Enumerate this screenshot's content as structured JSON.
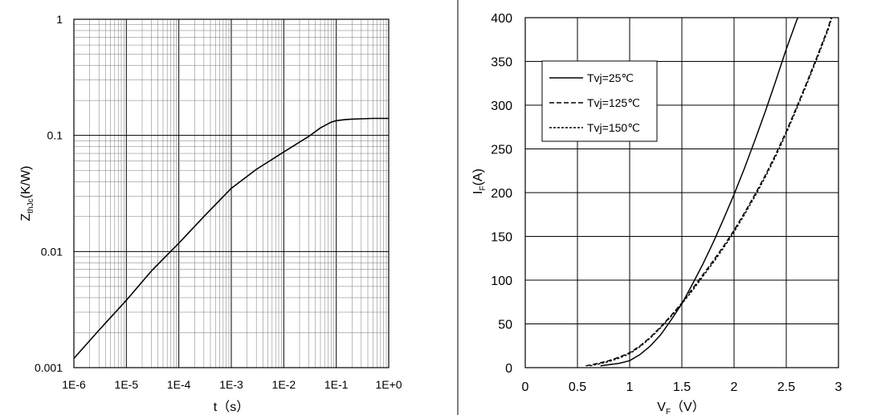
{
  "chart_data": [
    {
      "type": "line",
      "xscale": "log",
      "yscale": "log",
      "xlim": [
        1e-06,
        1
      ],
      "ylim": [
        0.001,
        1
      ],
      "x_tick_labels": [
        "1E-6",
        "1E-5",
        "1E-4",
        "1E-3",
        "1E-2",
        "1E-1",
        "1E+0"
      ],
      "y_tick_labels": [
        "0.001",
        "0.01",
        "0.1",
        "1"
      ],
      "xlabel": "t（s）",
      "ylabel": {
        "main": "Z",
        "sub": "thJc",
        "rest": "(K/W)"
      },
      "grid": true,
      "series": [
        {
          "x": [
            1e-06,
            3e-06,
            1e-05,
            3e-05,
            0.0001,
            0.0003,
            0.001,
            0.003,
            0.01,
            0.03,
            0.05,
            0.08,
            0.1,
            0.15,
            0.2,
            0.3,
            0.5,
            1
          ],
          "y": [
            0.0012,
            0.0021,
            0.0038,
            0.0068,
            0.0118,
            0.02,
            0.035,
            0.051,
            0.072,
            0.098,
            0.116,
            0.13,
            0.134,
            0.137,
            0.138,
            0.139,
            0.14,
            0.14
          ]
        }
      ]
    },
    {
      "type": "line",
      "xlim": [
        0,
        3
      ],
      "ylim": [
        0,
        400
      ],
      "x_ticks": [
        0,
        0.5,
        1,
        1.5,
        2,
        2.5,
        3
      ],
      "y_ticks": [
        0,
        50,
        100,
        150,
        200,
        250,
        300,
        350,
        400
      ],
      "x_tick_labels": [
        "0",
        "0.5",
        "1",
        "1.5",
        "2",
        "2.5",
        "3"
      ],
      "y_tick_labels": [
        "0",
        "50",
        "100",
        "150",
        "200",
        "250",
        "300",
        "350",
        "400"
      ],
      "xlabel": {
        "main": "V",
        "sub": "F",
        "rest": "（V）"
      },
      "ylabel": {
        "main": "I",
        "sub": "F",
        "rest": "(A)"
      },
      "grid": true,
      "legend": "top-left",
      "series": [
        {
          "name": "Tvj=25℃",
          "style": "solid",
          "x": [
            0.72,
            0.9,
            1.0,
            1.1,
            1.2,
            1.3,
            1.4,
            1.5,
            1.6,
            1.7,
            1.8,
            1.9,
            2.0,
            2.1,
            2.2,
            2.3,
            2.4,
            2.5,
            2.6,
            2.63
          ],
          "y": [
            2,
            5,
            8,
            15,
            25,
            38,
            55,
            73,
            95,
            118,
            143,
            170,
            198,
            228,
            260,
            293,
            328,
            364,
            397,
            405
          ]
        },
        {
          "name": "Tvj=125℃",
          "style": "dashed",
          "x": [
            0.58,
            0.7,
            0.8,
            0.9,
            1.0,
            1.1,
            1.2,
            1.3,
            1.4,
            1.5,
            1.6,
            1.7,
            1.8,
            1.9,
            2.0,
            2.1,
            2.2,
            2.3,
            2.4,
            2.5,
            2.6,
            2.7,
            2.8,
            2.9,
            2.93
          ],
          "y": [
            2,
            5,
            8,
            12,
            17,
            25,
            35,
            47,
            60,
            74,
            90,
            106,
            122,
            139,
            157,
            177,
            198,
            220,
            244,
            270,
            298,
            327,
            357,
            388,
            400
          ]
        },
        {
          "name": "Tvj=150℃",
          "style": "dotted",
          "x": [
            0.62,
            0.7,
            0.8,
            0.9,
            1.0,
            1.1,
            1.2,
            1.3,
            1.4,
            1.5,
            1.6,
            1.7,
            1.8,
            1.9,
            2.0,
            2.1,
            2.2,
            2.3,
            2.4,
            2.5,
            2.6,
            2.7,
            2.8,
            2.9,
            2.95
          ],
          "y": [
            2,
            4,
            7,
            11,
            16,
            24,
            34,
            46,
            59,
            73,
            88,
            104,
            120,
            137,
            155,
            175,
            196,
            218,
            242,
            268,
            296,
            325,
            355,
            386,
            405
          ]
        }
      ]
    }
  ]
}
